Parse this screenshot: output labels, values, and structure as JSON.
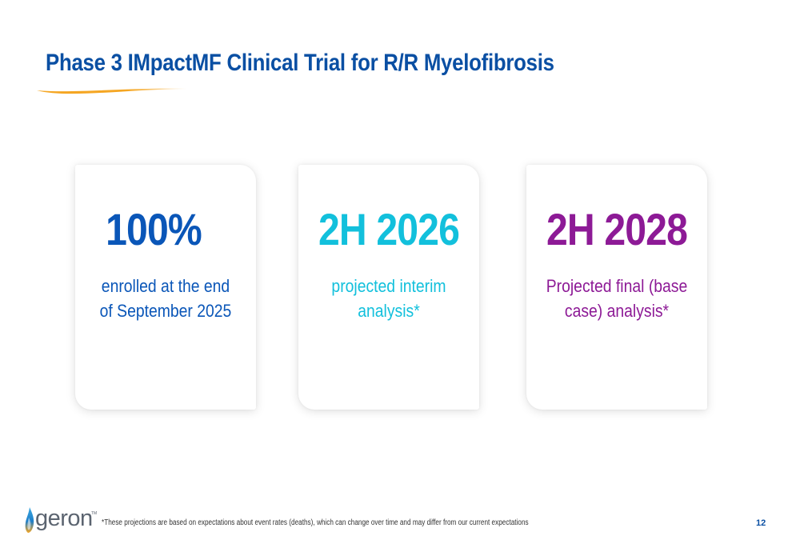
{
  "slide": {
    "title": "Phase 3 IMpactMF Clinical Trial for R/R Myelofibrosis",
    "page_number": "12"
  },
  "colors": {
    "title": "#0a4fa3",
    "swoosh": "#f5a623",
    "card1": "#0a56b8",
    "card2": "#12c0dc",
    "card3": "#8d1a96"
  },
  "cards": [
    {
      "stat": "100%",
      "desc_line1": "enrolled at the end",
      "desc_line2": "of September 2025"
    },
    {
      "stat": "2H 2026",
      "desc_line1": "projected interim",
      "desc_line2": "analysis*"
    },
    {
      "stat": "2H 2028",
      "desc_line1": "Projected final (base",
      "desc_line2": "case) analysis*"
    }
  ],
  "footer": {
    "logo_text": "geron",
    "logo_tm": "TM",
    "footnote": "*These projections are based on expectations about event rates (deaths), which can change over time and may differ from our current expectations"
  }
}
